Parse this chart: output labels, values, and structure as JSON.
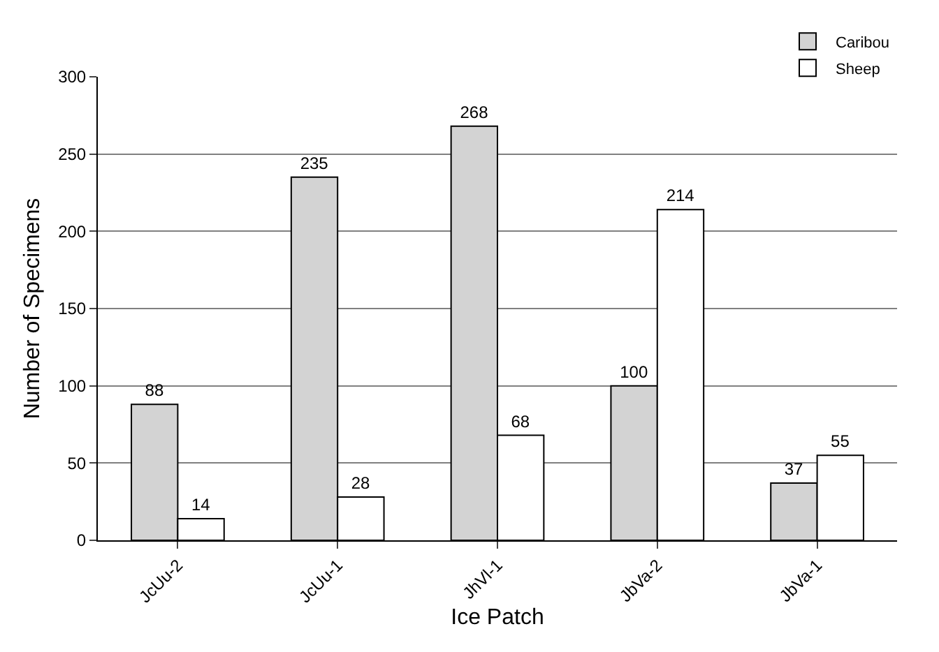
{
  "chart_data": {
    "type": "bar",
    "xlabel": "Ice Patch",
    "ylabel": "Number of Specimens",
    "categories": [
      "JcUu-2",
      "JcUu-1",
      "JhVl-1",
      "JbVa-2",
      "JbVa-1"
    ],
    "series": [
      {
        "name": "Caribou",
        "color": "#d3d3d3",
        "values": [
          88,
          235,
          268,
          100,
          37
        ]
      },
      {
        "name": "Sheep",
        "color": "#ffffff",
        "values": [
          14,
          28,
          68,
          214,
          55
        ]
      }
    ],
    "ylim": [
      0,
      300
    ],
    "yticks": [
      0,
      50,
      100,
      150,
      200,
      250,
      300
    ],
    "grid": "y",
    "legend": "top right",
    "data_labels": true
  }
}
